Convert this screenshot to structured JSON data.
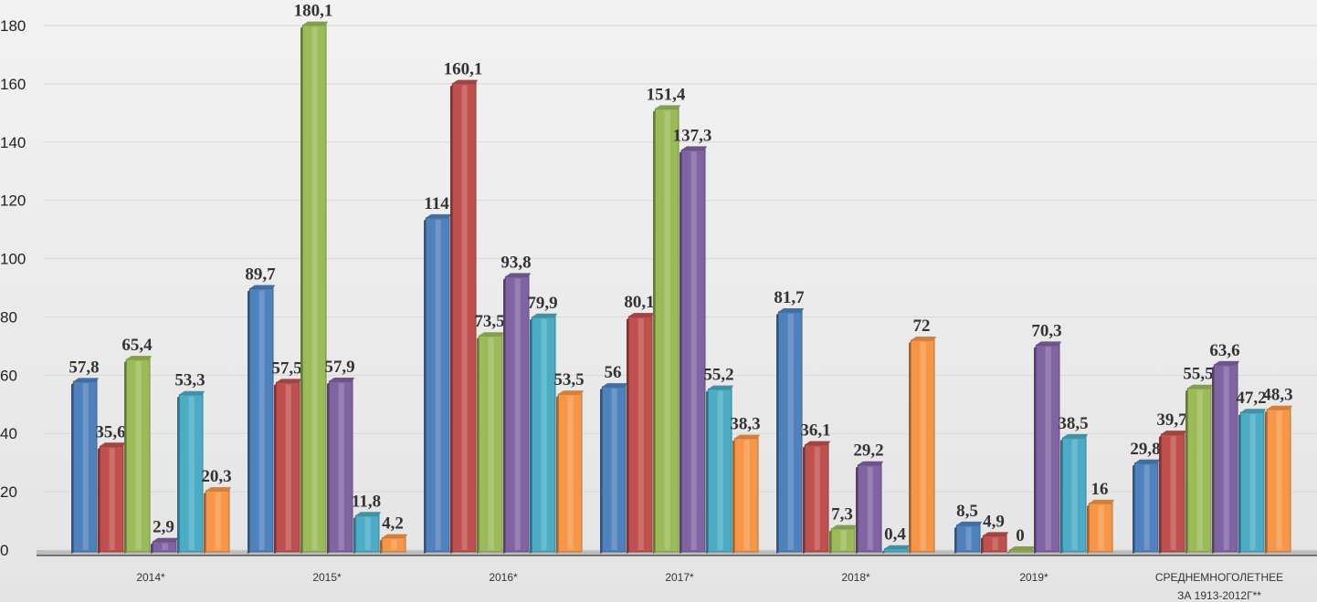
{
  "chart_data": {
    "type": "bar",
    "title": "",
    "xlabel": "",
    "ylabel": "",
    "ylim": [
      0,
      180
    ],
    "yticks": [
      0,
      20,
      40,
      60,
      80,
      100,
      120,
      140,
      160,
      180
    ],
    "grid": true,
    "legend": "none",
    "categories": [
      "2014*",
      "2015*",
      "2016*",
      "2017*",
      "2018*",
      "2019*",
      "СРЕДНЕМНОГОЛЕТНЕЕ ЗА 1913-2012Г**"
    ],
    "series": [
      {
        "color": "#4f81bd",
        "values": [
          57.8,
          89.7,
          114,
          56,
          81.7,
          8.5,
          29.8
        ],
        "labels": [
          "57,8",
          "89,7",
          "114",
          "56",
          "81,7",
          "8,5",
          "29,8"
        ]
      },
      {
        "color": "#c0504d",
        "values": [
          35.6,
          57.5,
          160.1,
          80.1,
          36.1,
          4.9,
          39.7
        ],
        "labels": [
          "35,6",
          "57,5",
          "160,1",
          "80,1",
          "36,1",
          "4,9",
          "39,7"
        ]
      },
      {
        "color": "#9bbb59",
        "values": [
          65.4,
          180.1,
          73.5,
          151.4,
          7.3,
          0,
          55.5
        ],
        "labels": [
          "65,4",
          "180,1",
          "73,5",
          "151,4",
          "7,3",
          "0",
          "55,5"
        ]
      },
      {
        "color": "#8064a2",
        "values": [
          2.9,
          57.9,
          93.8,
          137.3,
          29.2,
          70.3,
          63.6
        ],
        "labels": [
          "2,9",
          "57,9",
          "93,8",
          "137,3",
          "29,2",
          "70,3",
          "63,6"
        ]
      },
      {
        "color": "#4bacc6",
        "values": [
          53.3,
          11.8,
          79.9,
          55.2,
          0.4,
          38.5,
          47.2
        ],
        "labels": [
          "53,3",
          "11,8",
          "79,9",
          "55,2",
          "0,4",
          "38,5",
          "47,2"
        ]
      },
      {
        "color": "#f79646",
        "values": [
          20.3,
          4.2,
          53.5,
          38.3,
          72,
          16,
          48.3
        ],
        "labels": [
          "20,3",
          "4,2",
          "53,5",
          "38,3",
          "72",
          "16",
          "48,3"
        ]
      }
    ]
  }
}
